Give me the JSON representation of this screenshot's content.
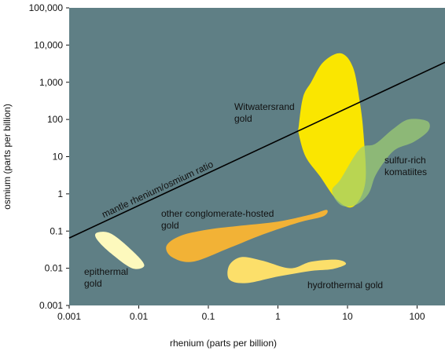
{
  "chart_data": {
    "type": "scatter",
    "xlabel": "rhenium (parts per billion)",
    "ylabel": "osmium (parts per billion)",
    "x_scale": "log",
    "y_scale": "log",
    "xlim": [
      0.001,
      300
    ],
    "ylim": [
      0.001,
      100000
    ],
    "x_ticks": [
      "0.001",
      "0.01",
      "0.1",
      "1",
      "10",
      "100"
    ],
    "y_ticks": [
      "0.001",
      "0.01",
      "0.1",
      "1",
      "10",
      "100",
      "1,000",
      "10,000",
      "100,000"
    ],
    "grid": false,
    "background_color": "#5f7f85",
    "reference_line": {
      "label": "mantle rhenium/osmium ratio",
      "points": [
        [
          0.001,
          0.065
        ],
        [
          300,
          4000
        ]
      ],
      "color": "#000000"
    },
    "regions": [
      {
        "name": "Witwatersrand gold",
        "label_lines": [
          "Witwatersrand",
          "gold"
        ],
        "color": "#fae600",
        "opacity": 1,
        "outline": [
          [
            2.0,
            70
          ],
          [
            2.3,
            400
          ],
          [
            3.0,
            1000
          ],
          [
            4.5,
            3500
          ],
          [
            8.0,
            6000
          ],
          [
            12.0,
            2500
          ],
          [
            15.0,
            300
          ],
          [
            17.0,
            40
          ],
          [
            18.0,
            2
          ],
          [
            12.0,
            0.45
          ],
          [
            7.0,
            0.7
          ],
          [
            4.0,
            3
          ],
          [
            2.5,
            10
          ],
          [
            2.0,
            40
          ]
        ]
      },
      {
        "name": "sulfur-rich komatiites",
        "label_lines": [
          "sulfur-rich",
          "komatiites"
        ],
        "color": "#9fcf72",
        "opacity": 0.72,
        "outline": [
          [
            8.0,
            2.5
          ],
          [
            15.0,
            16
          ],
          [
            25.0,
            22
          ],
          [
            45.0,
            55
          ],
          [
            75.0,
            100
          ],
          [
            140.0,
            90
          ],
          [
            145.0,
            50
          ],
          [
            90.0,
            25
          ],
          [
            50.0,
            16
          ],
          [
            35.0,
            8
          ],
          [
            25.0,
            3
          ],
          [
            20.0,
            1
          ],
          [
            13.0,
            0.5
          ],
          [
            8.0,
            0.5
          ],
          [
            6.0,
            1.2
          ]
        ]
      },
      {
        "name": "other conglomerate-hosted gold",
        "label_lines": [
          "other conglomerate-hosted",
          "gold"
        ],
        "color": "#f2b236",
        "opacity": 1,
        "outline": [
          [
            0.025,
            0.04
          ],
          [
            0.04,
            0.075
          ],
          [
            0.1,
            0.11
          ],
          [
            0.3,
            0.14
          ],
          [
            1.0,
            0.18
          ],
          [
            3.0,
            0.28
          ],
          [
            5.0,
            0.37
          ],
          [
            4.5,
            0.25
          ],
          [
            2.0,
            0.17
          ],
          [
            0.6,
            0.08
          ],
          [
            0.2,
            0.035
          ],
          [
            0.06,
            0.015
          ],
          [
            0.03,
            0.02
          ]
        ]
      },
      {
        "name": "hydrothermal gold",
        "label_lines": [
          "hydrothermal gold"
        ],
        "color": "#fcdf6a",
        "opacity": 1,
        "outline": [
          [
            0.2,
            0.012
          ],
          [
            0.3,
            0.02
          ],
          [
            0.6,
            0.016
          ],
          [
            1.5,
            0.01
          ],
          [
            3.0,
            0.015
          ],
          [
            7.0,
            0.017
          ],
          [
            9.5,
            0.013
          ],
          [
            6.0,
            0.0095
          ],
          [
            3.0,
            0.0085
          ],
          [
            1.0,
            0.006
          ],
          [
            0.35,
            0.004
          ],
          [
            0.2,
            0.005
          ]
        ]
      },
      {
        "name": "epithermal gold",
        "label_lines": [
          "epithermal",
          "gold"
        ],
        "color": "#fdf9bd",
        "opacity": 1,
        "outline": [
          [
            0.0025,
            0.09
          ],
          [
            0.004,
            0.085
          ],
          [
            0.008,
            0.03
          ],
          [
            0.012,
            0.012
          ],
          [
            0.008,
            0.01
          ],
          [
            0.004,
            0.025
          ],
          [
            0.0025,
            0.06
          ]
        ]
      }
    ]
  }
}
